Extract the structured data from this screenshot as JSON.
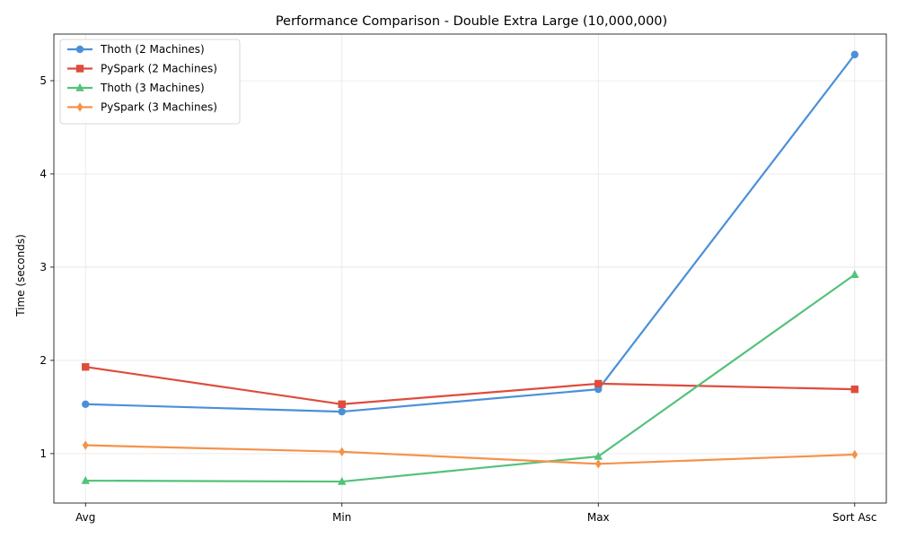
{
  "chart_data": {
    "type": "line",
    "title": "Performance Comparison - Double Extra Large (10,000,000)",
    "xlabel": "",
    "ylabel": "Time (seconds)",
    "categories": [
      "Avg",
      "Min",
      "Max",
      "Sort Asc"
    ],
    "ylim": [
      0.47,
      5.5
    ],
    "yticks": [
      1,
      2,
      3,
      4,
      5
    ],
    "grid": true,
    "legend_position": "top-left",
    "series": [
      {
        "name": "Thoth (2 Machines)",
        "color": "#4a90d9",
        "marker": "circle",
        "values": [
          1.53,
          1.45,
          1.69,
          5.28
        ]
      },
      {
        "name": "PySpark (2 Machines)",
        "color": "#de4c3c",
        "marker": "square",
        "values": [
          1.93,
          1.53,
          1.75,
          1.69
        ]
      },
      {
        "name": "Thoth (3 Machines)",
        "color": "#53c27a",
        "marker": "triangle",
        "values": [
          0.71,
          0.7,
          0.97,
          2.92
        ]
      },
      {
        "name": "PySpark (3 Machines)",
        "color": "#f5924a",
        "marker": "diamond",
        "values": [
          1.09,
          1.02,
          0.89,
          0.99
        ]
      }
    ]
  }
}
